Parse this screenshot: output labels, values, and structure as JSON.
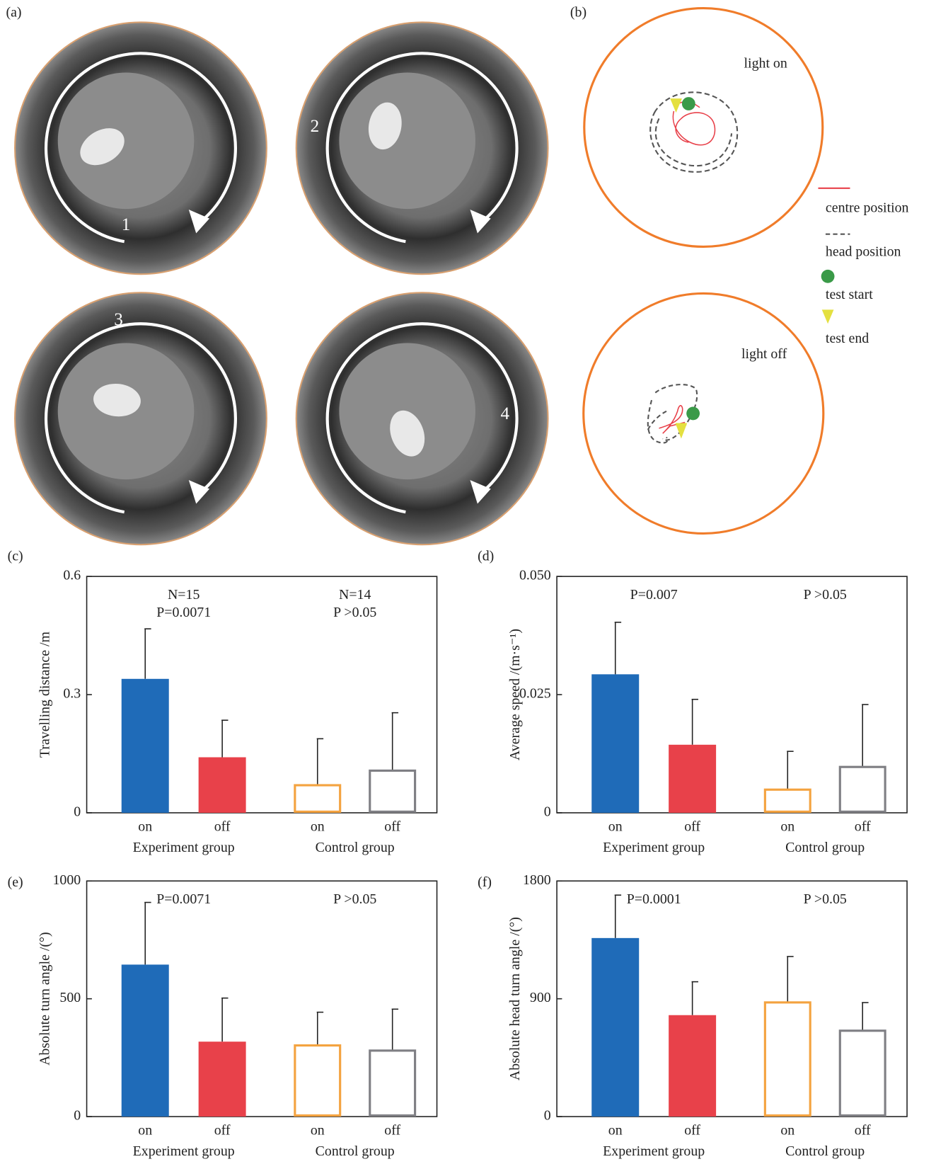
{
  "figure": {
    "panel_a": {
      "label": "(a)",
      "numbers": [
        "1",
        "2",
        "3",
        "4"
      ]
    },
    "panel_b": {
      "label": "(b)",
      "plots": [
        "light on",
        "light off"
      ],
      "legend": [
        "centre position",
        "head position",
        "test start",
        "test end"
      ]
    }
  },
  "chart_data": [
    {
      "type": "bar",
      "panel_label": "(c)",
      "ylabel": "Travelling distance /m",
      "categories": [
        "on",
        "off",
        "on",
        "off"
      ],
      "groups": [
        "Experiment group",
        "Control group"
      ],
      "values": [
        0.34,
        0.141,
        0.07,
        0.107
      ],
      "errors": [
        0.127,
        0.094,
        0.118,
        0.147
      ],
      "colors": [
        "#1f6bb8",
        "#e8414a",
        "#f4a340",
        "#7f7f84"
      ],
      "filled": [
        true,
        true,
        false,
        false
      ],
      "annotations": [
        [
          "N=15",
          "P=0.0071"
        ],
        [
          "N=14",
          "P >0.05"
        ]
      ],
      "ylim": [
        0,
        0.6
      ],
      "yticks": [
        0,
        0.3,
        0.6
      ]
    },
    {
      "type": "bar",
      "panel_label": "(d)",
      "ylabel": "Average speed /(m·s⁻¹)",
      "categories": [
        "on",
        "off",
        "on",
        "off"
      ],
      "groups": [
        "Experiment group",
        "Control group"
      ],
      "values": [
        0.0293,
        0.0144,
        0.0049,
        0.0097
      ],
      "errors": [
        0.011,
        0.0096,
        0.0081,
        0.0132
      ],
      "colors": [
        "#1f6bb8",
        "#e8414a",
        "#f4a340",
        "#7f7f84"
      ],
      "filled": [
        true,
        true,
        false,
        false
      ],
      "annotations": [
        [
          "P=0.007"
        ],
        [
          "P >0.05"
        ]
      ],
      "ylim": [
        0,
        0.05
      ],
      "yticks": [
        0,
        0.025,
        {
          "value": 0.05,
          "label": "0.050"
        }
      ]
    },
    {
      "type": "bar",
      "panel_label": "(e)",
      "ylabel": "Absolute turn angle /(°)",
      "categories": [
        "on",
        "off",
        "on",
        "off"
      ],
      "groups": [
        "Experiment group",
        "Control group"
      ],
      "values": [
        645,
        318,
        302,
        280
      ],
      "errors": [
        264,
        185,
        141,
        176
      ],
      "colors": [
        "#1f6bb8",
        "#e8414a",
        "#f4a340",
        "#7f7f84"
      ],
      "filled": [
        true,
        true,
        false,
        false
      ],
      "annotations": [
        [
          "P=0.0071"
        ],
        [
          "P >0.05"
        ]
      ],
      "ylim": [
        0,
        1000
      ],
      "yticks": [
        0,
        500,
        1000
      ]
    },
    {
      "type": "bar",
      "panel_label": "(f)",
      "ylabel": "Absolute head turn angle /(°)",
      "categories": [
        "on",
        "off",
        "on",
        "off"
      ],
      "groups": [
        "Experiment group",
        "Control group"
      ],
      "values": [
        1364,
        775,
        872,
        656
      ],
      "errors": [
        328,
        255,
        351,
        215
      ],
      "colors": [
        "#1f6bb8",
        "#e8414a",
        "#f4a340",
        "#7f7f84"
      ],
      "filled": [
        true,
        true,
        false,
        false
      ],
      "annotations": [
        [
          "P=0.0001"
        ],
        [
          "P >0.05"
        ]
      ],
      "ylim": [
        0,
        1800
      ],
      "yticks": [
        0,
        900,
        1800
      ]
    }
  ]
}
